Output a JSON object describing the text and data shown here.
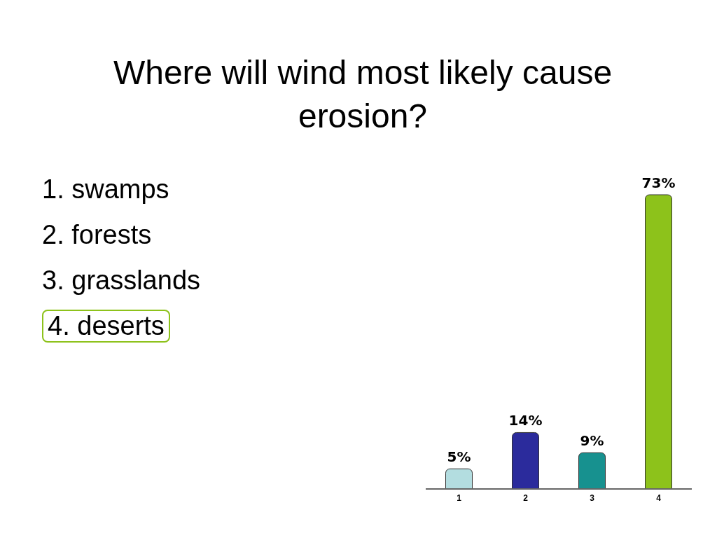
{
  "chart_data": {
    "type": "bar",
    "title": "Where will wind most likely cause erosion?",
    "categories": [
      "1",
      "2",
      "3",
      "4"
    ],
    "values": [
      5,
      14,
      9,
      73
    ],
    "colors": [
      "#b3dde0",
      "#2b2b9c",
      "#17918f",
      "#8dc21b"
    ],
    "value_labels": [
      "5%",
      "14%",
      "9%",
      "73%"
    ],
    "annotations": [
      "1.  swamps",
      "2.  forests",
      "3.  grasslands",
      "4.  deserts"
    ]
  }
}
